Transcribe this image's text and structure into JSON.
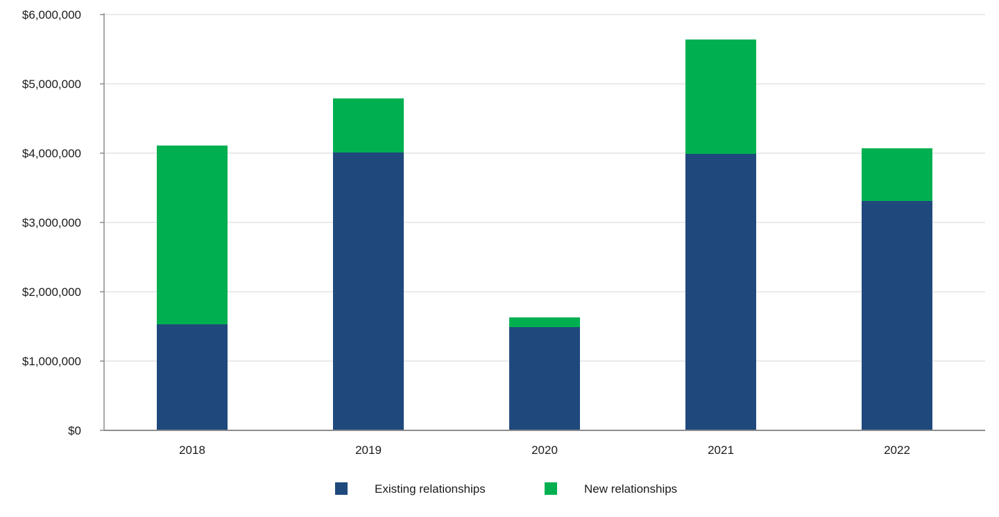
{
  "chart_data": {
    "type": "bar",
    "stacked": true,
    "categories": [
      "2018",
      "2019",
      "2020",
      "2021",
      "2022"
    ],
    "series": [
      {
        "name": "Existing relationships",
        "color": "#1f497d",
        "values": [
          1530000,
          4010000,
          1490000,
          3990000,
          3310000
        ]
      },
      {
        "name": "New relationships",
        "color": "#00b050",
        "values": [
          2580000,
          780000,
          140000,
          1650000,
          760000
        ]
      }
    ],
    "title": "",
    "xlabel": "",
    "ylabel": "",
    "ylim": [
      0,
      6000000
    ],
    "yticks": [
      0,
      1000000,
      2000000,
      3000000,
      4000000,
      5000000,
      6000000
    ],
    "ytick_labels": [
      "$0",
      "$1,000,000",
      "$2,000,000",
      "$3,000,000",
      "$4,000,000",
      "$5,000,000",
      "$6,000,000"
    ],
    "grid": true,
    "legend_position": "bottom-center"
  }
}
